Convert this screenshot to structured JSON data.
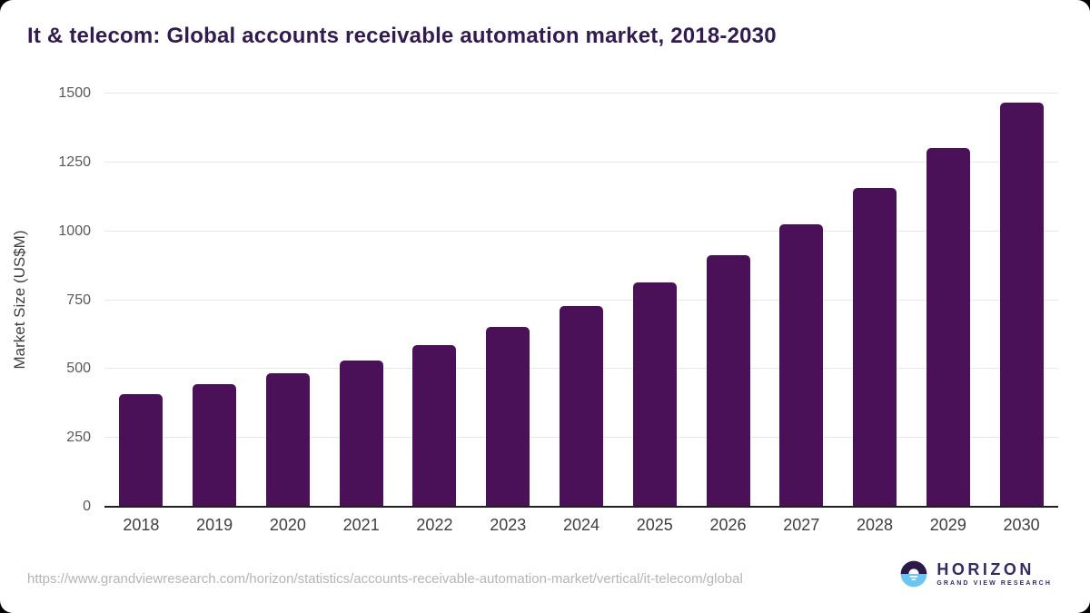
{
  "page": {
    "title": "It & telecom: Global accounts receivable automation market, 2018-2030",
    "source_url": "https://www.grandviewresearch.com/horizon/statistics/accounts-receivable-automation-market/vertical/it-telecom/global"
  },
  "logo": {
    "name": "HORIZON",
    "subtitle": "GRAND VIEW RESEARCH",
    "colors": {
      "dark": "#2b1a47",
      "blue": "#6cc5f0",
      "text": "#372a63"
    }
  },
  "chart_data": {
    "type": "bar",
    "title": "It & telecom: Global accounts receivable automation market, 2018-2030",
    "categories": [
      "2018",
      "2019",
      "2020",
      "2021",
      "2022",
      "2023",
      "2024",
      "2025",
      "2026",
      "2027",
      "2028",
      "2029",
      "2030"
    ],
    "values": [
      410,
      445,
      486,
      530,
      588,
      653,
      728,
      815,
      912,
      1025,
      1156,
      1303,
      1468
    ],
    "xlabel": "",
    "ylabel": "Market Size (US$M)",
    "ylim": [
      0,
      1500
    ],
    "yticks": [
      0,
      250,
      500,
      750,
      1000,
      1250,
      1500
    ],
    "bar_color": "#4a1159",
    "grid": true,
    "legend_position": "none"
  }
}
